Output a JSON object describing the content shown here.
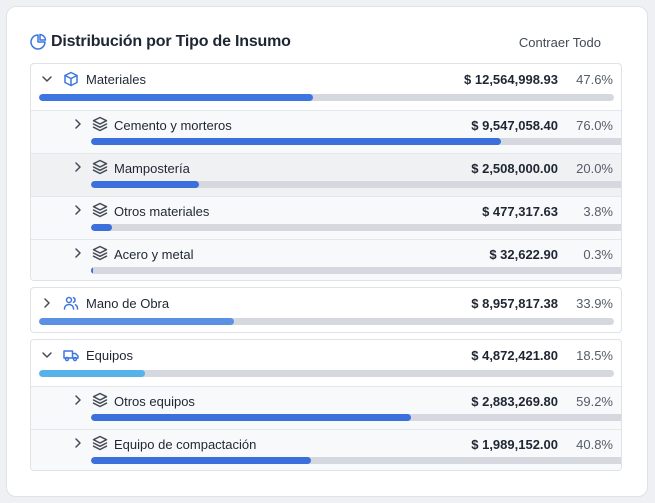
{
  "header": {
    "title": "Distribución por Tipo de Insumo",
    "action": "Contraer Todo"
  },
  "groups": [
    {
      "label": "Materiales",
      "amount": "$ 12,564,998.93",
      "percent": "47.6%",
      "color": "#3d76e0",
      "children": [
        {
          "label": "Cemento y morteros",
          "amount": "$ 9,547,058.40",
          "percent": "76.0%"
        },
        {
          "label": "Mampostería",
          "amount": "$ 2,508,000.00",
          "percent": "20.0%"
        },
        {
          "label": "Otros materiales",
          "amount": "$ 477,317.63",
          "percent": "3.8%"
        },
        {
          "label": "Acero y metal",
          "amount": "$ 32,622.90",
          "percent": "0.3%"
        }
      ]
    },
    {
      "label": "Mano de Obra",
      "amount": "$ 8,957,817.38",
      "percent": "33.9%",
      "color": "#5b91e5",
      "children": []
    },
    {
      "label": "Equipos",
      "amount": "$ 4,872,421.80",
      "percent": "18.5%",
      "color": "#58b2ea",
      "children": [
        {
          "label": "Otros equipos",
          "amount": "$ 2,883,269.80",
          "percent": "59.2%"
        },
        {
          "label": "Equipo de compactación",
          "amount": "$ 1,989,152.00",
          "percent": "40.8%"
        }
      ]
    }
  ]
}
